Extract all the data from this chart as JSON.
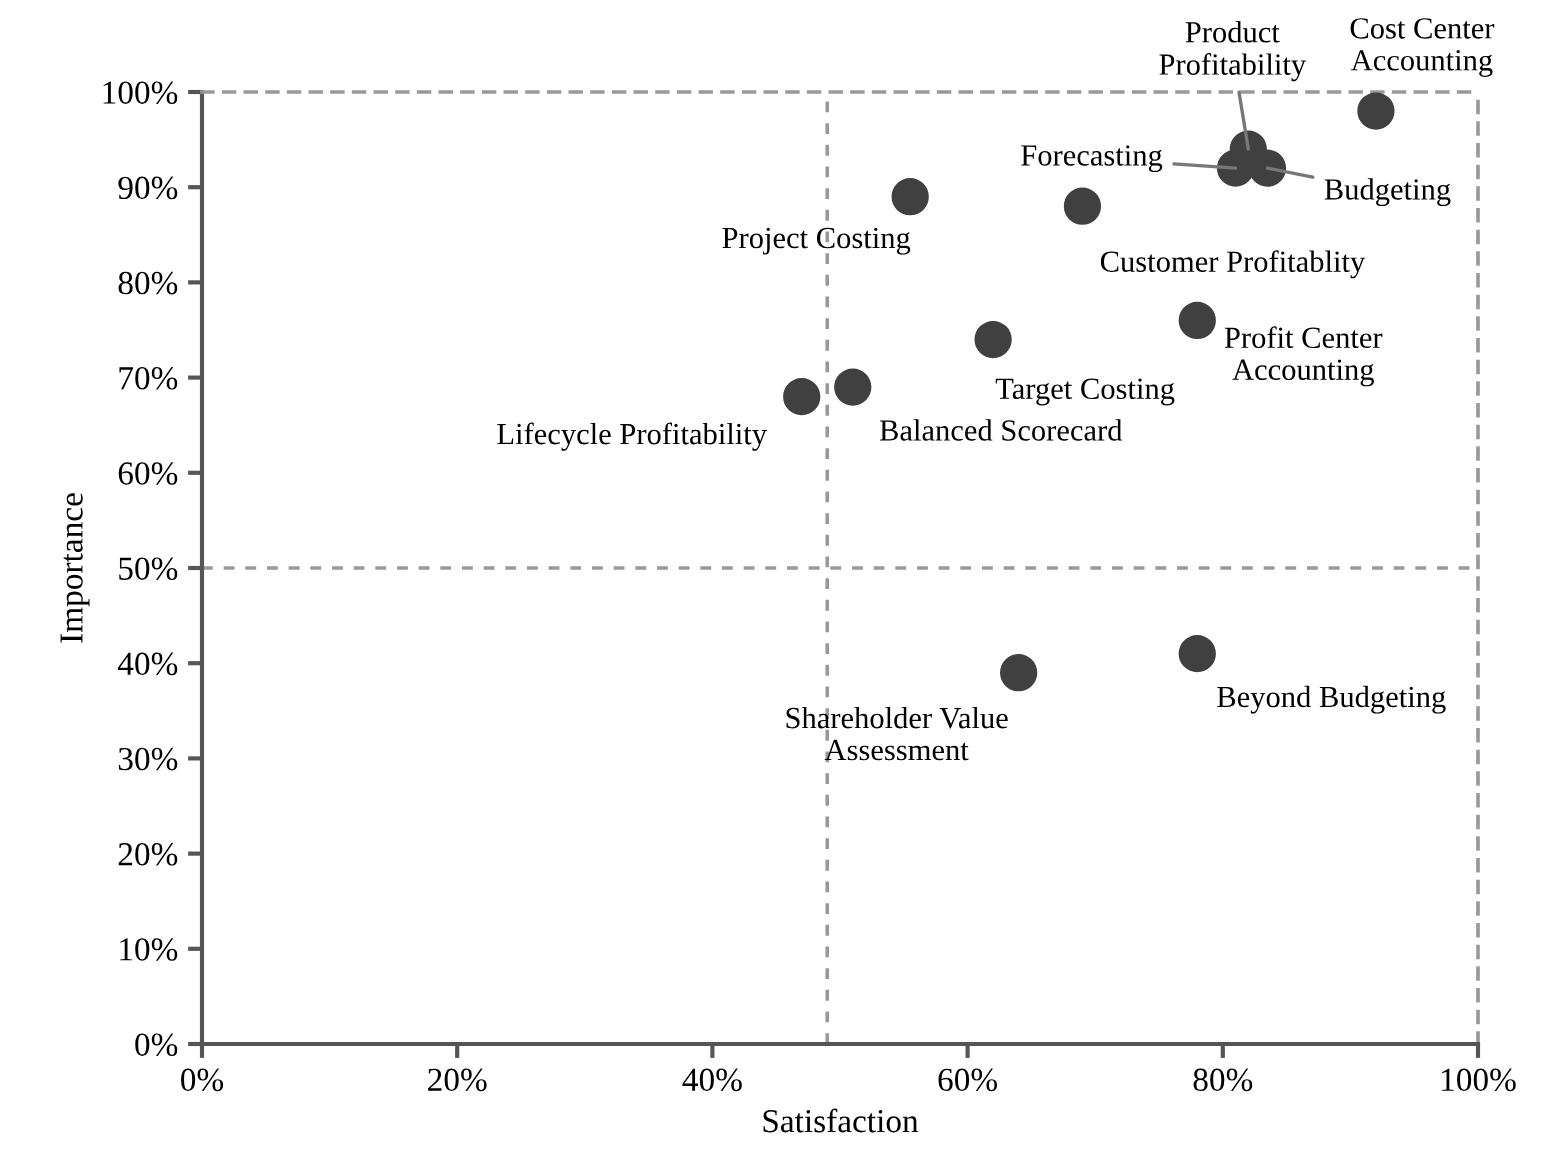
{
  "chart_data": {
    "type": "scatter",
    "xlabel": "Satisfaction",
    "ylabel": "Importance",
    "x": [
      92,
      82,
      81,
      83.5,
      69,
      78,
      62,
      55.5,
      51,
      47,
      64,
      78
    ],
    "series": [
      {
        "color": "#404040",
        "values": [
          98,
          94,
          92,
          92,
          88,
          76,
          74,
          89,
          69,
          68,
          39,
          41
        ]
      }
    ],
    "marker": "circle",
    "grid": false,
    "legend": false,
    "xlim": [
      0,
      100
    ],
    "ylim": [
      0,
      100
    ],
    "xticks": [
      {
        "value": 0,
        "label": "0%"
      },
      {
        "value": 20,
        "label": "20%"
      },
      {
        "value": 40,
        "label": "40%"
      },
      {
        "value": 60,
        "label": "60%"
      },
      {
        "value": 80,
        "label": "80%"
      },
      {
        "value": 100,
        "label": "100%"
      }
    ],
    "yticks": [
      {
        "value": 0,
        "label": "0%"
      },
      {
        "value": 10,
        "label": "10%"
      },
      {
        "value": 20,
        "label": "20%"
      },
      {
        "value": 30,
        "label": "30%"
      },
      {
        "value": 40,
        "label": "40%"
      },
      {
        "value": 50,
        "label": "50%"
      },
      {
        "value": 60,
        "label": "60%"
      },
      {
        "value": 70,
        "label": "70%"
      },
      {
        "value": 80,
        "label": "80%"
      },
      {
        "value": 90,
        "label": "90%"
      },
      {
        "value": 100,
        "label": "100%"
      }
    ],
    "ref_lines": [
      {
        "axis": "x",
        "value": 49,
        "color": "#999999",
        "line_style": "dashed"
      },
      {
        "axis": "y",
        "value": 50,
        "color": "#999999",
        "line_style": "dashed"
      }
    ],
    "annotations": [
      {
        "text": "Cost Center\nAccounting",
        "x": 92,
        "y": 98
      },
      {
        "text": "Product\nProfitability",
        "x": 82,
        "y": 94
      },
      {
        "text": "Forecasting",
        "x": 81,
        "y": 92
      },
      {
        "text": "Budgeting",
        "x": 83.5,
        "y": 92
      },
      {
        "text": "Customer Profitablity",
        "x": 69,
        "y": 88
      },
      {
        "text": "Profit Center\nAccounting",
        "x": 78,
        "y": 76
      },
      {
        "text": "Target Costing",
        "x": 62,
        "y": 74
      },
      {
        "text": "Project Costing",
        "x": 55.5,
        "y": 89
      },
      {
        "text": "Balanced Scorecard",
        "x": 51,
        "y": 69
      },
      {
        "text": "Lifecycle Profitability",
        "x": 47,
        "y": 68
      },
      {
        "text": "Shareholder Value\nAssessment",
        "x": 64,
        "y": 39
      },
      {
        "text": "Beyond Budgeting",
        "x": 78,
        "y": 41
      }
    ]
  }
}
